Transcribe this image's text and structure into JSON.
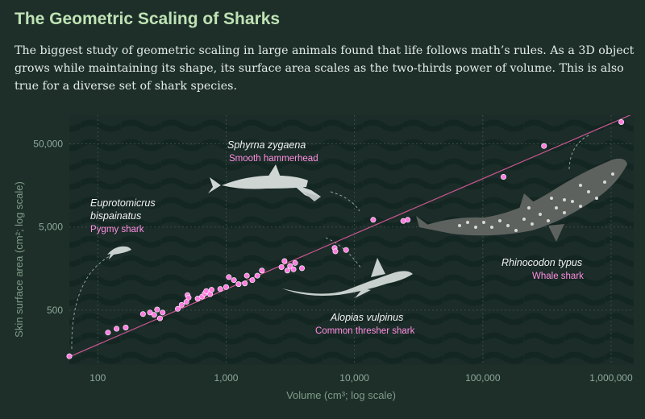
{
  "title": "The Geometric Scaling of Sharks",
  "subtitle": "The biggest study of geometric scaling in large animals found that life follows math’s rules. As a 3D object grows while maintaining its shape, its surface area scales as the two-thirds power of volume. This is also true for a diverse set of shark species.",
  "colors": {
    "background": "#1e2f2a",
    "plot_background": "#18292a",
    "title": "#bfe3b4",
    "point": "#ff7de0",
    "fit_line": "#c9568f",
    "species_name": "#f2f2f2",
    "common_name": "#ff8fe0",
    "axis_text": "#7f9a86"
  },
  "chart_data": {
    "type": "scatter",
    "xscale": "log",
    "yscale": "log",
    "xlabel": "Volume (cm³; log scale)",
    "ylabel": "Skin surface area (cm²; log scale)",
    "xlim": [
      60,
      1500000
    ],
    "ylim": [
      110,
      110000
    ],
    "xticks": [
      100,
      1000,
      10000,
      100000,
      1000000
    ],
    "xtick_labels": [
      "100",
      "1,000",
      "10,000",
      "100,000",
      "1,000,000"
    ],
    "yticks": [
      500,
      5000,
      50000
    ],
    "ytick_labels": [
      "500",
      "5,000",
      "50,000"
    ],
    "fit_line": {
      "x": [
        60,
        1500000
      ],
      "y": [
        138,
        115000
      ]
    },
    "points": [
      {
        "x": 60,
        "y": 140
      },
      {
        "x": 120,
        "y": 270
      },
      {
        "x": 140,
        "y": 300
      },
      {
        "x": 165,
        "y": 310
      },
      {
        "x": 225,
        "y": 450
      },
      {
        "x": 255,
        "y": 470
      },
      {
        "x": 275,
        "y": 440
      },
      {
        "x": 290,
        "y": 510
      },
      {
        "x": 305,
        "y": 400
      },
      {
        "x": 320,
        "y": 470
      },
      {
        "x": 420,
        "y": 520
      },
      {
        "x": 450,
        "y": 580
      },
      {
        "x": 490,
        "y": 630
      },
      {
        "x": 500,
        "y": 760
      },
      {
        "x": 510,
        "y": 710
      },
      {
        "x": 600,
        "y": 690
      },
      {
        "x": 650,
        "y": 730
      },
      {
        "x": 680,
        "y": 790
      },
      {
        "x": 700,
        "y": 850
      },
      {
        "x": 750,
        "y": 780
      },
      {
        "x": 770,
        "y": 880
      },
      {
        "x": 900,
        "y": 900
      },
      {
        "x": 1000,
        "y": 950
      },
      {
        "x": 1050,
        "y": 1250
      },
      {
        "x": 1150,
        "y": 1150
      },
      {
        "x": 1250,
        "y": 1030
      },
      {
        "x": 1400,
        "y": 1050
      },
      {
        "x": 1450,
        "y": 1300
      },
      {
        "x": 1600,
        "y": 1150
      },
      {
        "x": 1750,
        "y": 1300
      },
      {
        "x": 1900,
        "y": 1500
      },
      {
        "x": 2700,
        "y": 1650
      },
      {
        "x": 2850,
        "y": 1950
      },
      {
        "x": 3000,
        "y": 1500
      },
      {
        "x": 3150,
        "y": 1700
      },
      {
        "x": 3350,
        "y": 1550
      },
      {
        "x": 3450,
        "y": 1850
      },
      {
        "x": 3900,
        "y": 1600
      },
      {
        "x": 7000,
        "y": 2800
      },
      {
        "x": 7100,
        "y": 2550
      },
      {
        "x": 8600,
        "y": 2650
      },
      {
        "x": 14000,
        "y": 6100
      },
      {
        "x": 24000,
        "y": 5900
      },
      {
        "x": 26000,
        "y": 6100
      },
      {
        "x": 145000,
        "y": 20000
      },
      {
        "x": 300000,
        "y": 47000
      },
      {
        "x": 1200000,
        "y": 91000
      }
    ],
    "annotations": [
      {
        "species": "Eupro­tomicrus",
        "species_line2": "bispainatus",
        "common": "Pygmy shark"
      },
      {
        "species": "Sphyrna zygaena",
        "common": "Smooth hammerhead"
      },
      {
        "species": "Alopias vulpinus",
        "common": "Common thresher shark"
      },
      {
        "species": "Rhinocodon typus",
        "common": "Whale shark"
      }
    ]
  }
}
